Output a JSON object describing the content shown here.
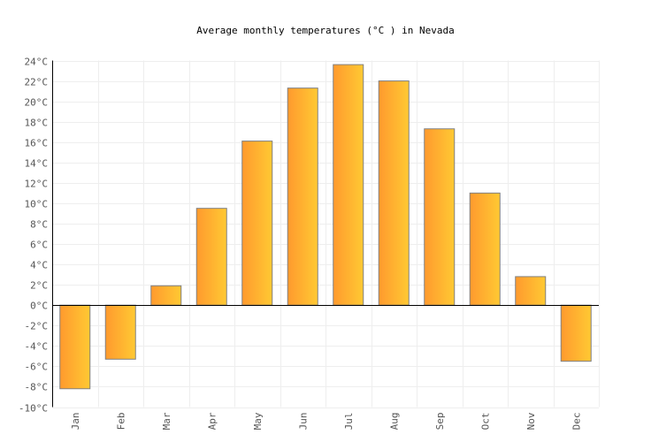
{
  "chart_data": {
    "type": "bar",
    "title": "Average monthly temperatures (°C ) in Nevada",
    "categories": [
      "Jan",
      "Feb",
      "Mar",
      "Apr",
      "May",
      "Jun",
      "Jul",
      "Aug",
      "Sep",
      "Oct",
      "Nov",
      "Dec"
    ],
    "values": [
      -8.2,
      -5.3,
      1.9,
      9.5,
      16.1,
      21.3,
      23.6,
      22.0,
      17.3,
      11.0,
      2.8,
      -5.5
    ],
    "ylim": [
      -10,
      24
    ],
    "yticks": [
      -10,
      -8,
      -6,
      -4,
      -2,
      0,
      2,
      4,
      6,
      8,
      10,
      12,
      14,
      16,
      18,
      20,
      22,
      24
    ],
    "ytick_suffix": "°C",
    "xlabel": "",
    "ylabel": "",
    "grid": true,
    "colors": {
      "bar_start": "#ff9a2e",
      "bar_end": "#ffc933",
      "bar_border": "#808080",
      "grid": "#eeeeee"
    }
  }
}
